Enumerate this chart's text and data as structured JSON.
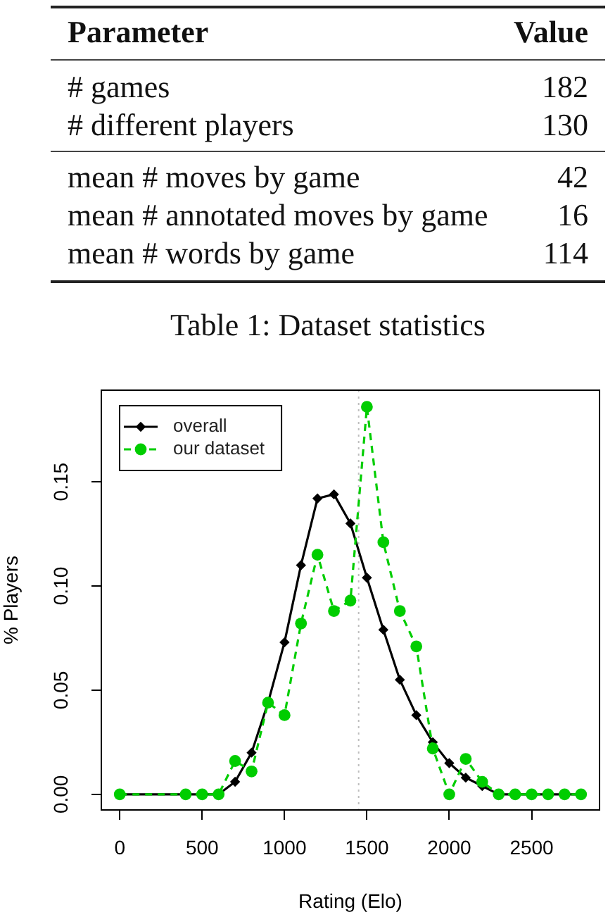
{
  "chart_data": [
    {
      "type": "other",
      "xlabel": "Parameter",
      "ylabel": "Value",
      "categories": [
        "# games",
        "# different players",
        "mean # moves by game",
        "mean # annotated moves by game",
        "mean # words by game"
      ],
      "values": [
        182,
        130,
        42,
        16,
        114
      ],
      "data_labels": true,
      "annotations": [
        "Table 1: Dataset statistics"
      ]
    },
    {
      "type": "line",
      "xlabel": "Rating (Elo)",
      "ylabel": "% Players",
      "x": [
        0,
        400,
        500,
        600,
        700,
        800,
        900,
        1000,
        1100,
        1200,
        1300,
        1400,
        1500,
        1600,
        1700,
        1800,
        1900,
        2000,
        2100,
        2200,
        2300,
        2400,
        2500,
        2600,
        2700,
        2800
      ],
      "series": [
        {
          "name": "overall",
          "color": "#000000",
          "marker": "diamond",
          "line_style": "solid",
          "values": [
            0,
            0,
            0,
            0,
            0.006,
            0.02,
            0.044,
            0.073,
            0.11,
            0.142,
            0.144,
            0.13,
            0.104,
            0.079,
            0.055,
            0.038,
            0.025,
            0.015,
            0.008,
            0.004,
            0,
            0,
            0,
            0,
            0,
            0
          ]
        },
        {
          "name": "our dataset",
          "color": "#00cd00",
          "marker": "circle",
          "line_style": "dashed",
          "values": [
            0,
            0,
            0,
            0,
            0.016,
            0.011,
            0.044,
            0.038,
            0.082,
            0.115,
            0.088,
            0.093,
            0.186,
            0.121,
            0.088,
            0.071,
            0.022,
            0,
            0.017,
            0.006,
            0,
            0,
            0,
            0,
            0,
            0
          ]
        }
      ],
      "xlim": [
        -112,
        2912
      ],
      "ylim": [
        -0.0075,
        0.194
      ],
      "xticks": [
        0,
        500,
        1000,
        1500,
        2000,
        2500
      ],
      "yticks": [
        {
          "value": 0,
          "label": "0.00"
        },
        0.05,
        {
          "value": 0.1,
          "label": "0.10"
        },
        0.15
      ],
      "ref_lines": [
        {
          "axis": "x",
          "value": 1450,
          "color": "#bebebe",
          "line_style": "dotted"
        }
      ],
      "legend": "top left"
    }
  ]
}
